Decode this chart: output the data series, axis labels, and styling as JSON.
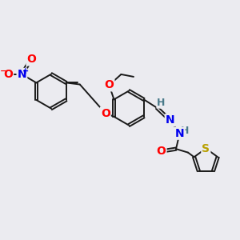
{
  "bg_color": "#ebebf0",
  "bond_color": "#1a1a1a",
  "bond_width": 1.4,
  "dbo": 0.055,
  "atom_colors": {
    "O": "#ff0000",
    "N": "#0000ee",
    "S": "#b8a000",
    "H": "#4a7a8a",
    "C": "#1a1a1a"
  }
}
